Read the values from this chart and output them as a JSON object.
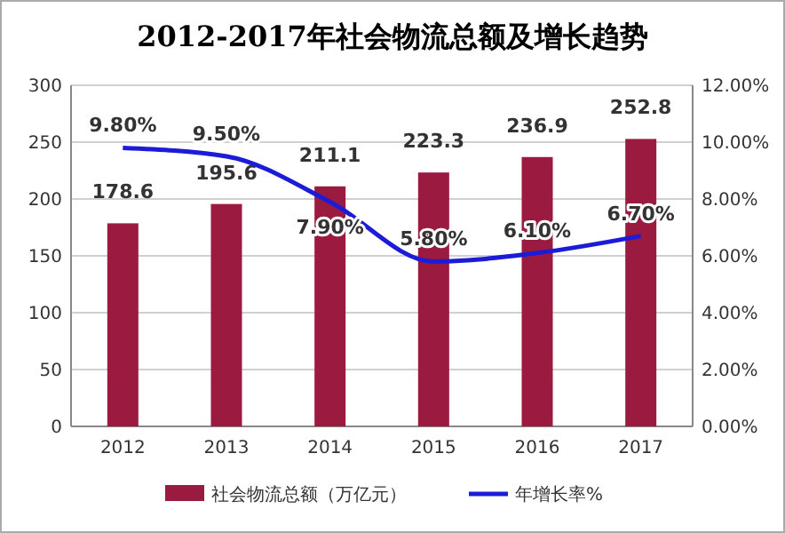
{
  "chart_data": {
    "type": "bar",
    "title": "2012-2017年社会物流总额及增长趋势",
    "categories": [
      "2012",
      "2013",
      "2014",
      "2015",
      "2016",
      "2017"
    ],
    "series": [
      {
        "name": "社会物流总额（万亿元）",
        "color": "#9b1b40",
        "values": [
          178.6,
          195.6,
          211.1,
          223.3,
          236.9,
          252.8
        ],
        "value_labels": [
          "178.6",
          "195.6",
          "211.1",
          "223.3",
          "236.9",
          "252.8"
        ]
      },
      {
        "name": "年增长率%",
        "type": "line",
        "axis": "y2",
        "color": "#1c1cd8",
        "values": [
          9.8,
          9.5,
          7.9,
          5.8,
          6.1,
          6.7
        ],
        "value_labels": [
          "9.80%",
          "9.50%",
          "7.90%",
          "5.80%",
          "6.10%",
          "6.70%"
        ]
      }
    ],
    "ylim": [
      0,
      300
    ],
    "yticks": [
      0,
      50,
      100,
      150,
      200,
      250,
      300
    ],
    "y2lim": [
      0,
      12
    ],
    "y2ticks": [
      {
        "value": 0,
        "label": "0.00%"
      },
      {
        "value": 2,
        "label": "2.00%"
      },
      {
        "value": 4,
        "label": "4.00%"
      },
      {
        "value": 6,
        "label": "6.00%"
      },
      {
        "value": 8,
        "label": "8.00%"
      },
      {
        "value": 10,
        "label": "10.00%"
      },
      {
        "value": 12,
        "label": "12.00%"
      }
    ],
    "grid": "y",
    "legend": "bottom",
    "marker": "none",
    "line_style": "solid"
  }
}
